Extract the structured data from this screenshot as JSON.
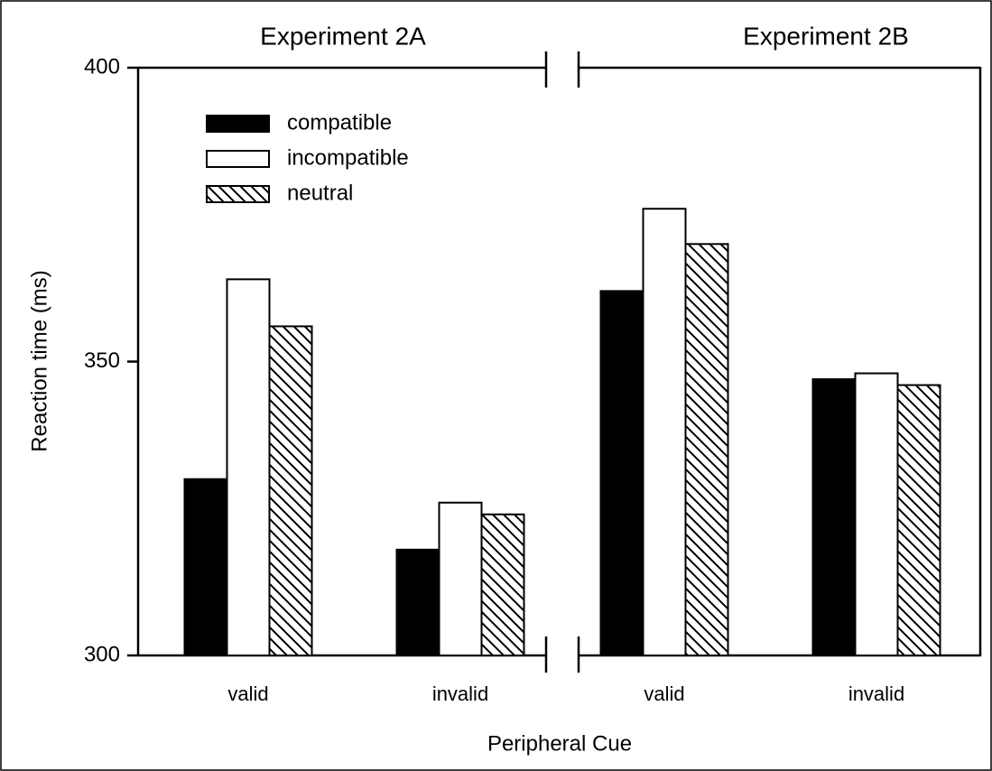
{
  "chart_data": {
    "type": "bar",
    "ylabel": "Reaction time (ms)",
    "xlabel": "Peripheral Cue",
    "ylim": [
      300,
      400
    ],
    "yticks": [
      300,
      350,
      400
    ],
    "series": [
      {
        "name": "compatible",
        "color": "#000000"
      },
      {
        "name": "incompatible",
        "color": "#ffffff"
      },
      {
        "name": "neutral",
        "color": "#ffffff",
        "hatch": true
      }
    ],
    "panels": [
      {
        "title": "Experiment 2A",
        "categories": [
          "valid",
          "invalid"
        ],
        "values": [
          [
            330,
            318
          ],
          [
            364,
            326
          ],
          [
            356,
            324
          ]
        ]
      },
      {
        "title": "Experiment 2B",
        "categories": [
          "valid",
          "invalid"
        ],
        "values": [
          [
            362,
            347
          ],
          [
            376,
            348
          ],
          [
            370,
            346
          ]
        ]
      }
    ]
  }
}
